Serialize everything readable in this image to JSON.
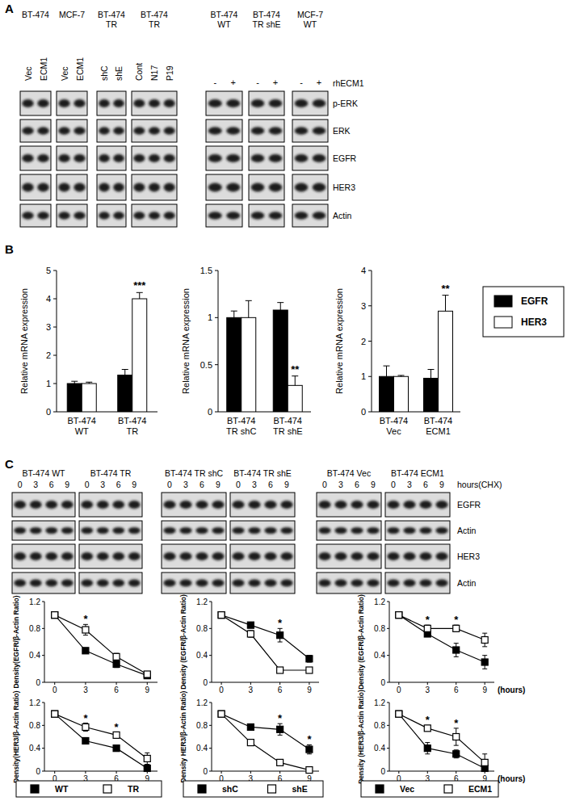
{
  "panel_labels": [
    "A",
    "B",
    "C"
  ],
  "blots_a": {
    "rows": [
      "p-ERK",
      "ERK",
      "EGFR",
      "HER3",
      "Actin"
    ],
    "groups": [
      {
        "header": [
          "BT-474"
        ],
        "lanes": [
          "Vec",
          "ECM1"
        ]
      },
      {
        "header": [
          "MCF-7"
        ],
        "lanes": [
          "Vec",
          "ECM1"
        ]
      },
      {
        "header": [
          "BT-474",
          "TR"
        ],
        "lanes": [
          "shC",
          "shE"
        ]
      },
      {
        "header": [
          "BT-474",
          "TR"
        ],
        "lanes": [
          "Cont",
          "N17",
          "P19"
        ]
      }
    ],
    "treatment_groups": [
      {
        "header": [
          "BT-474",
          "WT"
        ],
        "lanes": [
          "-",
          "+"
        ]
      },
      {
        "header": [
          "BT-474",
          "TR shE"
        ],
        "lanes": [
          "-",
          "+"
        ]
      },
      {
        "header": [
          "MCF-7",
          "WT"
        ],
        "lanes": [
          "-",
          "+"
        ]
      }
    ],
    "treatment_label": "rhECM1"
  },
  "blots_c": {
    "rows": [
      "EGFR",
      "Actin",
      "HER3",
      "Actin"
    ],
    "groups": [
      {
        "header": "BT-474 WT",
        "lanes": [
          0,
          3,
          6,
          9
        ]
      },
      {
        "header": "BT-474 TR",
        "lanes": [
          0,
          3,
          6,
          9
        ]
      },
      {
        "header": "BT-474 TR shC",
        "lanes": [
          0,
          3,
          6,
          9
        ]
      },
      {
        "header": "BT-474 TR shE",
        "lanes": [
          0,
          3,
          6,
          9
        ]
      },
      {
        "header": "BT-474 Vec",
        "lanes": [
          0,
          3,
          6,
          9
        ]
      },
      {
        "header": "BT-474 ECM1",
        "lanes": [
          0,
          3,
          6,
          9
        ]
      }
    ],
    "time_label": "hours(CHX)"
  },
  "chart_data": [
    {
      "type": "bar",
      "y_label": "Relative mRNA expression",
      "categories": [
        "BT-474 WT",
        "BT-474 TR"
      ],
      "series": [
        {
          "name": "EGFR",
          "color": "#000000",
          "values": [
            1.0,
            1.3
          ],
          "errors": [
            0.08,
            0.2
          ]
        },
        {
          "name": "HER3",
          "color": "#ffffff",
          "values": [
            1.0,
            4.0
          ],
          "errors": [
            0.05,
            0.22
          ]
        }
      ],
      "ylim": [
        0,
        5
      ],
      "yticks": [
        0,
        1,
        2,
        3,
        4,
        5
      ],
      "annotations": [
        {
          "text": "***",
          "category": 1,
          "series": 1
        }
      ]
    },
    {
      "type": "bar",
      "y_label": "Relative mRNA expression",
      "categories": [
        "BT-474 TR shC",
        "BT-474 TR shE"
      ],
      "series": [
        {
          "name": "EGFR",
          "color": "#000000",
          "values": [
            1.0,
            1.08
          ],
          "errors": [
            0.07,
            0.08
          ]
        },
        {
          "name": "HER3",
          "color": "#ffffff",
          "values": [
            1.0,
            0.28
          ],
          "errors": [
            0.18,
            0.1
          ]
        }
      ],
      "ylim": [
        0,
        1.5
      ],
      "yticks": [
        0,
        0.5,
        1,
        1.5
      ],
      "annotations": [
        {
          "text": "**",
          "category": 1,
          "series": 1
        }
      ]
    },
    {
      "type": "bar",
      "y_label": "Relative mRNA expression",
      "categories": [
        "BT-474 Vec",
        "BT-474 ECM1"
      ],
      "series": [
        {
          "name": "EGFR",
          "color": "#000000",
          "values": [
            1.0,
            0.95
          ],
          "errors": [
            0.3,
            0.25
          ]
        },
        {
          "name": "HER3",
          "color": "#ffffff",
          "values": [
            1.0,
            2.85
          ],
          "errors": [
            0.03,
            0.45
          ]
        }
      ],
      "ylim": [
        0,
        4
      ],
      "yticks": [
        0,
        1,
        2,
        3,
        4
      ],
      "legend": "right",
      "annotations": [
        {
          "text": "**",
          "category": 1,
          "series": 1
        }
      ]
    },
    {
      "type": "line",
      "y_label": "Density(EGFR/β-Actin Ratio)",
      "x": [
        0,
        3,
        6,
        9
      ],
      "xlim": [
        -1,
        10
      ],
      "xticks": [
        0,
        3,
        6,
        9
      ],
      "ylim": [
        0,
        1.2
      ],
      "yticks": [
        0,
        0.4,
        0.8,
        1.2
      ],
      "series": [
        {
          "name": "WT",
          "color": "#000000",
          "marker": "square",
          "values": [
            1,
            0.47,
            0.27,
            0.1
          ],
          "errors": [
            0,
            0.03,
            0.05,
            0.03
          ]
        },
        {
          "name": "TR",
          "color": "#ffffff",
          "marker": "square",
          "values": [
            1,
            0.78,
            0.38,
            0.12
          ],
          "errors": [
            0,
            0.08,
            0.05,
            0.03
          ]
        }
      ],
      "annotations": [
        {
          "text": "*",
          "x": 3
        }
      ]
    },
    {
      "type": "line",
      "y_label": "Density (EGFR/β-Actin Ratio)",
      "x": [
        0,
        3,
        6,
        9
      ],
      "xlim": [
        -1,
        10
      ],
      "xticks": [
        0,
        3,
        6,
        9
      ],
      "ylim": [
        0,
        1.2
      ],
      "yticks": [
        0,
        0.4,
        0.8,
        1.2
      ],
      "series": [
        {
          "name": "shC",
          "color": "#000000",
          "marker": "square",
          "values": [
            1,
            0.85,
            0.7,
            0.35
          ],
          "errors": [
            0,
            0.03,
            0.1,
            0.05
          ]
        },
        {
          "name": "shE",
          "color": "#ffffff",
          "marker": "square",
          "values": [
            1,
            0.72,
            0.18,
            0.18
          ],
          "errors": [
            0,
            0.05,
            0.02,
            0.02
          ]
        }
      ],
      "annotations": [
        {
          "text": "*",
          "x": 6
        }
      ]
    },
    {
      "type": "line",
      "y_label": "Density (EGFR/β-Actin Ratio)",
      "x_label": "(hours)",
      "x": [
        0,
        3,
        6,
        9
      ],
      "xlim": [
        -1,
        10
      ],
      "xticks": [
        0,
        3,
        6,
        9
      ],
      "ylim": [
        0,
        1.2
      ],
      "yticks": [
        0,
        0.4,
        0.8,
        1.2
      ],
      "series": [
        {
          "name": "Vec",
          "color": "#000000",
          "marker": "square",
          "values": [
            1,
            0.72,
            0.48,
            0.3
          ],
          "errors": [
            0,
            0.03,
            0.1,
            0.1
          ]
        },
        {
          "name": "ECM1",
          "color": "#ffffff",
          "marker": "square",
          "values": [
            1,
            0.8,
            0.8,
            0.63
          ],
          "errors": [
            0,
            0.05,
            0.05,
            0.1
          ]
        }
      ],
      "annotations": [
        {
          "text": "*",
          "x": 3
        },
        {
          "text": "*",
          "x": 6
        }
      ]
    },
    {
      "type": "line",
      "y_label": "Density(HER3/β-Actin Ratio)",
      "x": [
        0,
        3,
        6,
        9
      ],
      "xlim": [
        -1,
        10
      ],
      "xticks": [
        0,
        3,
        6,
        9
      ],
      "ylim": [
        0,
        1.2
      ],
      "yticks": [
        0,
        0.4,
        0.8,
        1.2
      ],
      "series": [
        {
          "name": "WT",
          "color": "#000000",
          "marker": "square",
          "values": [
            1,
            0.53,
            0.4,
            0.05
          ],
          "errors": [
            0,
            0.05,
            0.03,
            0.02
          ]
        },
        {
          "name": "TR",
          "color": "#ffffff",
          "marker": "square",
          "values": [
            1,
            0.77,
            0.63,
            0.22
          ],
          "errors": [
            0,
            0.07,
            0.05,
            0.1
          ]
        }
      ],
      "legend": "bottom",
      "annotations": [
        {
          "text": "*",
          "x": 3
        },
        {
          "text": "*",
          "x": 6
        }
      ]
    },
    {
      "type": "line",
      "y_label": "Density HER3/β-Actin Ratio)",
      "x": [
        0,
        3,
        6,
        9
      ],
      "xlim": [
        -1,
        10
      ],
      "xticks": [
        0,
        3,
        6,
        9
      ],
      "ylim": [
        0,
        1.2
      ],
      "yticks": [
        0,
        0.4,
        0.8,
        1.2
      ],
      "series": [
        {
          "name": "shC",
          "color": "#000000",
          "marker": "square",
          "values": [
            1,
            0.77,
            0.73,
            0.38
          ],
          "errors": [
            0,
            0.05,
            0.1,
            0.08
          ]
        },
        {
          "name": "shE",
          "color": "#ffffff",
          "marker": "square",
          "values": [
            1,
            0.5,
            0.15,
            0.02
          ],
          "errors": [
            0,
            0.02,
            0.03,
            0.01
          ]
        }
      ],
      "legend": "bottom",
      "annotations": [
        {
          "text": "*",
          "x": 6
        },
        {
          "text": "*",
          "x": 9
        }
      ]
    },
    {
      "type": "line",
      "y_label": "Density (HER3/β-Actin Ratio)",
      "x_label": "(hours)",
      "x": [
        0,
        3,
        6,
        9
      ],
      "xlim": [
        -1,
        10
      ],
      "xticks": [
        0,
        3,
        6,
        9
      ],
      "ylim": [
        0,
        1.2
      ],
      "yticks": [
        0,
        0.4,
        0.8,
        1.2
      ],
      "series": [
        {
          "name": "Vec",
          "color": "#000000",
          "marker": "square",
          "values": [
            1,
            0.4,
            0.3,
            0.05
          ],
          "errors": [
            0,
            0.1,
            0.07,
            0.05
          ]
        },
        {
          "name": "ECM1",
          "color": "#ffffff",
          "marker": "square",
          "values": [
            1,
            0.75,
            0.6,
            0.15
          ],
          "errors": [
            0,
            0.05,
            0.15,
            0.15
          ]
        }
      ],
      "legend": "bottom",
      "annotations": [
        {
          "text": "*",
          "x": 3
        },
        {
          "text": "*",
          "x": 6
        }
      ]
    }
  ]
}
